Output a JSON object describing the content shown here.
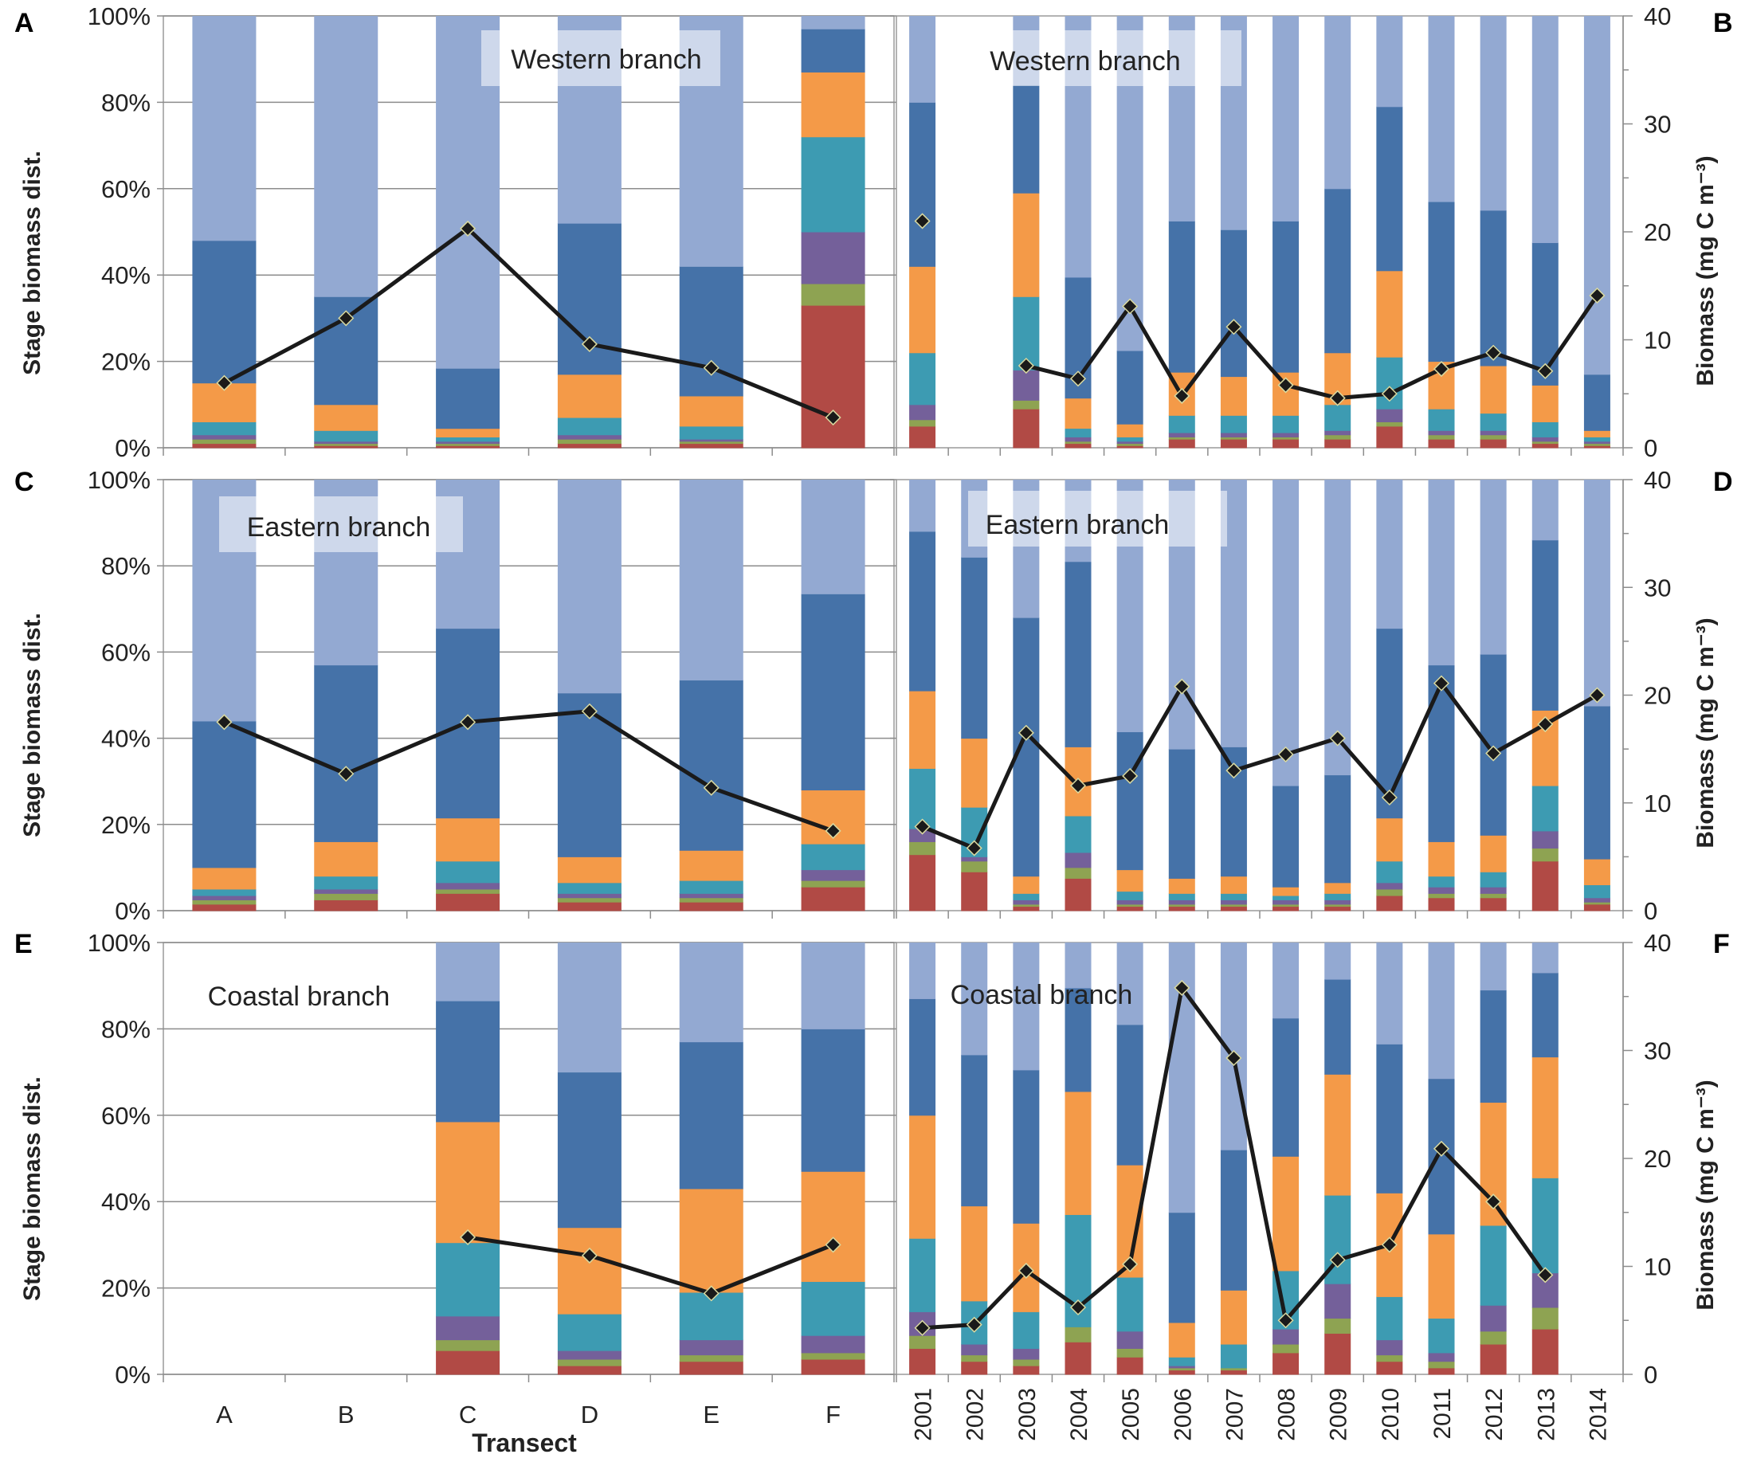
{
  "figure": {
    "y_left_label": "Stage biomass dist.",
    "y_right_label": "Biomass (mg C m⁻³)",
    "x_label_transect": "Transect",
    "pct_ticks": [
      "0%",
      "20%",
      "40%",
      "60%",
      "80%",
      "100%"
    ],
    "bio_ticks": [
      "0",
      "10",
      "20",
      "30",
      "40"
    ]
  },
  "stage_colors": [
    "#b14a45",
    "#8ea352",
    "#74609a",
    "#3d9bb2",
    "#f49a48",
    "#4572a8",
    "#93a9d2"
  ],
  "chart_data": [
    {
      "panel": "A",
      "branch": "Western branch",
      "type": "bar",
      "stacked": true,
      "categories": [
        "A",
        "B",
        "C",
        "D",
        "E",
        "F"
      ],
      "stacks": [
        [
          1,
          1,
          1,
          3,
          9,
          33,
          52
        ],
        [
          0.5,
          0.5,
          0.5,
          2.5,
          6,
          25,
          65
        ],
        [
          0.5,
          0.5,
          0.5,
          1,
          2,
          14,
          82
        ],
        [
          1,
          1,
          1,
          4,
          10,
          35,
          48
        ],
        [
          1,
          0.5,
          0.5,
          3,
          7,
          30,
          58
        ],
        [
          33,
          5,
          12,
          22,
          15,
          10,
          3
        ]
      ],
      "line_values": [
        6,
        12,
        20.3,
        9.6,
        7.4,
        2.8
      ],
      "line_ylim": [
        0,
        40
      ]
    },
    {
      "panel": "B",
      "branch": "Western branch",
      "type": "bar",
      "stacked": true,
      "categories": [
        "2001",
        "2002",
        "2003",
        "2004",
        "2005",
        "2006",
        "2007",
        "2008",
        "2009",
        "2010",
        "2011",
        "2012",
        "2013",
        "2014"
      ],
      "stacks": [
        [
          5,
          1.5,
          3.5,
          12,
          20,
          38,
          20
        ],
        null,
        [
          9,
          2,
          7,
          17,
          24,
          25,
          16
        ],
        [
          1,
          0.5,
          1,
          2,
          7,
          28,
          60.5
        ],
        [
          0.5,
          0.5,
          0.5,
          1,
          3,
          17,
          77.5
        ],
        [
          2,
          0.5,
          1,
          4,
          10,
          35,
          47.5
        ],
        [
          2,
          0.5,
          1,
          4,
          9,
          34,
          49.5
        ],
        [
          2,
          0.5,
          1,
          4,
          10,
          35,
          47.5
        ],
        [
          2,
          1,
          1,
          6,
          12,
          38,
          40
        ],
        [
          5,
          1,
          3,
          12,
          20,
          38,
          21
        ],
        [
          2,
          1,
          1,
          5,
          11,
          37,
          43
        ],
        [
          2,
          1,
          1,
          4,
          11,
          36,
          45
        ],
        [
          1,
          0.5,
          1,
          3.5,
          8.5,
          33,
          52.5
        ],
        [
          0.5,
          0.5,
          0.5,
          1,
          1.5,
          13,
          83
        ]
      ],
      "line_values": [
        21,
        null,
        7.6,
        6.4,
        13.1,
        4.8,
        11.2,
        5.8,
        4.6,
        5,
        7.3,
        8.8,
        7.1,
        14.1
      ],
      "line_ylim": [
        0,
        40
      ]
    },
    {
      "panel": "C",
      "branch": "Eastern branch",
      "type": "bar",
      "stacked": true,
      "categories": [
        "A",
        "B",
        "C",
        "D",
        "E",
        "F"
      ],
      "stacks": [
        [
          1.5,
          1,
          1,
          1.5,
          5,
          34,
          56
        ],
        [
          2.5,
          1.5,
          1,
          3,
          8,
          41,
          43
        ],
        [
          4,
          1,
          1.5,
          5,
          10,
          44,
          34.5
        ],
        [
          2,
          1,
          1,
          2.5,
          6,
          38,
          49.5
        ],
        [
          2,
          1,
          1,
          3,
          7,
          39.5,
          46.5
        ],
        [
          5.5,
          1.5,
          2.5,
          6,
          12.5,
          45.5,
          26.5
        ]
      ],
      "line_values": [
        17.5,
        12.7,
        17.5,
        18.5,
        11.4,
        7.4
      ],
      "line_ylim": [
        0,
        40
      ]
    },
    {
      "panel": "D",
      "branch": "Eastern branch",
      "type": "bar",
      "stacked": true,
      "categories": [
        "2001",
        "2002",
        "2003",
        "2004",
        "2005",
        "2006",
        "2007",
        "2008",
        "2009",
        "2010",
        "2011",
        "2012",
        "2013",
        "2014"
      ],
      "stacks": [
        [
          13,
          3,
          3,
          14,
          18,
          37,
          12
        ],
        [
          9,
          2.5,
          1,
          11.5,
          16,
          42,
          18
        ],
        [
          1,
          0.5,
          1,
          1.5,
          4,
          60,
          32
        ],
        [
          7.5,
          2.5,
          3.5,
          8.5,
          16,
          43,
          19
        ],
        [
          1,
          0.5,
          1,
          2,
          5,
          32,
          58.5
        ],
        [
          1,
          0.5,
          1,
          1.5,
          3.5,
          30,
          62.5
        ],
        [
          1,
          0.5,
          1,
          1.5,
          4,
          30,
          62
        ],
        [
          1,
          0.5,
          1,
          1,
          2,
          23.5,
          71
        ],
        [
          1,
          0.5,
          1,
          1.5,
          2.5,
          25,
          68.5
        ],
        [
          3.5,
          1.5,
          1.5,
          5,
          10,
          44,
          34.5
        ],
        [
          3,
          1,
          1.5,
          2.5,
          8,
          41,
          43
        ],
        [
          3,
          1,
          1.5,
          3.5,
          8.5,
          42,
          40.5
        ],
        [
          11.5,
          3,
          4,
          10.5,
          17.5,
          39.5,
          14
        ],
        [
          1.5,
          0.5,
          1,
          3,
          6,
          35.5,
          52.5
        ]
      ],
      "line_values": [
        7.8,
        5.8,
        16.5,
        11.6,
        12.5,
        20.8,
        13,
        14.5,
        16,
        10.5,
        21.1,
        14.6,
        17.3,
        20
      ],
      "line_ylim": [
        0,
        40
      ]
    },
    {
      "panel": "E",
      "branch": "Coastal branch",
      "type": "bar",
      "stacked": true,
      "categories": [
        "A",
        "B",
        "C",
        "D",
        "E",
        "F"
      ],
      "stacks": [
        null,
        null,
        [
          5.5,
          2.5,
          5.5,
          17,
          28,
          28,
          13.5
        ],
        [
          2,
          1.5,
          2,
          8.5,
          20,
          36,
          30
        ],
        [
          3,
          1.5,
          3.5,
          11,
          24,
          34,
          23
        ],
        [
          3.5,
          1.5,
          4,
          12.5,
          25.5,
          33,
          20
        ]
      ],
      "line_values": [
        null,
        null,
        12.7,
        11,
        7.5,
        12
      ],
      "line_ylim": [
        0,
        40
      ]
    },
    {
      "panel": "F",
      "branch": "Coastal branch",
      "type": "bar",
      "stacked": true,
      "categories": [
        "2001",
        "2002",
        "2003",
        "2004",
        "2005",
        "2006",
        "2007",
        "2008",
        "2009",
        "2010",
        "2011",
        "2012",
        "2013",
        "2014"
      ],
      "stacks": [
        [
          6,
          3,
          5.5,
          17,
          28.5,
          27,
          13
        ],
        [
          3,
          1.5,
          2.5,
          10,
          22,
          35,
          26
        ],
        [
          2,
          1.5,
          2.5,
          8.5,
          20.5,
          35.5,
          29.5
        ],
        [
          7.5,
          3.5,
          0,
          26,
          28.5,
          24,
          10.5
        ],
        [
          4,
          2,
          4,
          12.5,
          26,
          32.5,
          19
        ],
        [
          1,
          0.5,
          0.5,
          2,
          8,
          25.5,
          62.5
        ],
        [
          1,
          0.5,
          0,
          5.5,
          12.5,
          32.5,
          48
        ],
        [
          5,
          2,
          3.5,
          13.5,
          26.5,
          32,
          17.5
        ],
        [
          9.5,
          3.5,
          8,
          20.5,
          28,
          22,
          8.5
        ],
        [
          3,
          1.5,
          3.5,
          10,
          24,
          34.5,
          23.5
        ],
        [
          1.5,
          1.5,
          2,
          8,
          19.5,
          36,
          31.5
        ],
        [
          7,
          3,
          6,
          18.5,
          28.5,
          26,
          11
        ],
        [
          10.5,
          5,
          8,
          22,
          28,
          19.5,
          7
        ],
        null
      ],
      "line_values": [
        4.3,
        4.6,
        9.6,
        6.2,
        10.2,
        35.8,
        29.3,
        5,
        10.6,
        12,
        20.9,
        16,
        9.2,
        null
      ],
      "line_ylim": [
        0,
        40
      ]
    }
  ]
}
